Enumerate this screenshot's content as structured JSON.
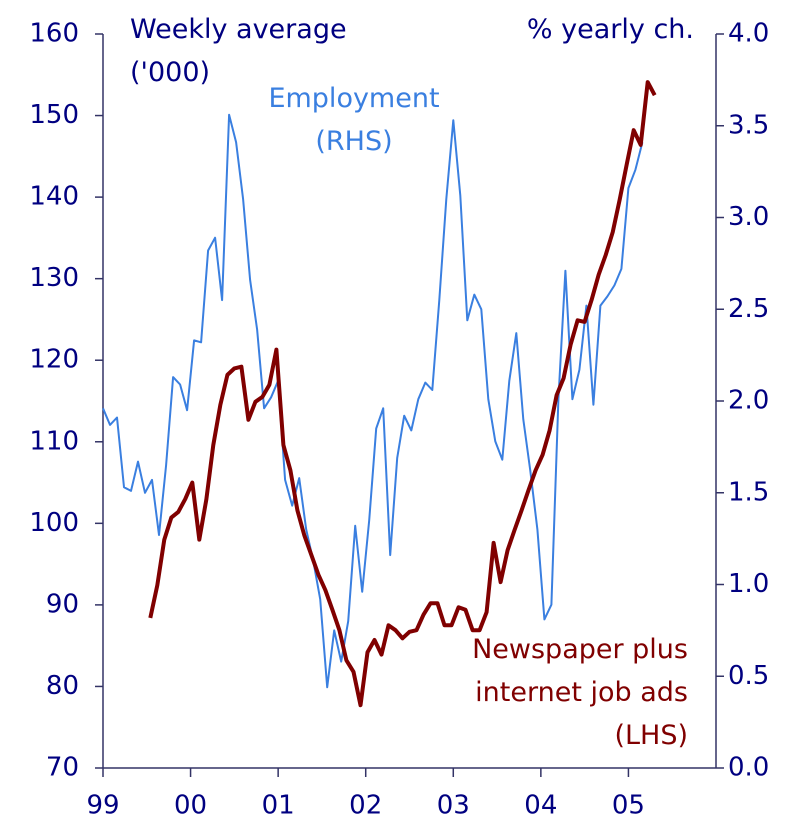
{
  "chart_data": {
    "type": "line",
    "y_label": "Weekly average\n('000)",
    "y2_label": "% yearly ch.",
    "xlim": [
      1999,
      2006
    ],
    "xticks": [
      {
        "value": 1999,
        "label": "99"
      },
      {
        "value": 2000,
        "label": "00"
      },
      {
        "value": 2001,
        "label": "01"
      },
      {
        "value": 2002,
        "label": "02"
      },
      {
        "value": 2003,
        "label": "03"
      },
      {
        "value": 2004,
        "label": "04"
      },
      {
        "value": 2005,
        "label": "05"
      }
    ],
    "ylim": [
      70,
      160
    ],
    "yticks": [
      70,
      80,
      90,
      100,
      110,
      120,
      130,
      140,
      150,
      160
    ],
    "y2lim": [
      0,
      4
    ],
    "y2ticks": [
      {
        "value": 0,
        "label": "0.0"
      },
      0.5,
      {
        "value": 1,
        "label": "1.0"
      },
      1.5,
      {
        "value": 2,
        "label": "2.0"
      },
      2.5,
      {
        "value": 3,
        "label": "3.0"
      },
      3.5,
      {
        "value": 4,
        "label": "4.0"
      }
    ],
    "series": [
      {
        "name": "Employment\n(RHS)",
        "color": "#3a7fe0",
        "axis": "y2",
        "x": [
          1999,
          1999.08,
          1999.16,
          1999.24,
          1999.32,
          1999.4,
          1999.48,
          1999.56,
          1999.64,
          1999.72,
          1999.8,
          1999.88,
          1999.96,
          2000.04,
          2000.12,
          2000.2,
          2000.28,
          2000.36,
          2000.44,
          2000.52,
          2000.6,
          2000.68,
          2000.76,
          2000.84,
          2000.92,
          2001,
          2001.08,
          2001.16,
          2001.24,
          2001.32,
          2001.4,
          2001.48,
          2001.56,
          2001.64,
          2001.72,
          2001.8,
          2001.88,
          2001.96,
          2002.04,
          2002.12,
          2002.2,
          2002.28,
          2002.36,
          2002.44,
          2002.52,
          2002.6,
          2002.68,
          2002.76,
          2002.84,
          2002.92,
          2003,
          2003.08,
          2003.16,
          2003.24,
          2003.32,
          2003.4,
          2003.48,
          2003.56,
          2003.64,
          2003.72,
          2003.8,
          2003.88,
          2003.96,
          2004.04,
          2004.12,
          2004.2,
          2004.28,
          2004.36,
          2004.44,
          2004.52,
          2004.6,
          2004.68,
          2004.76,
          2004.84,
          2004.92,
          2005,
          2005.08,
          2005.16
        ],
        "values": [
          1.96,
          1.87,
          1.91,
          1.53,
          1.51,
          1.67,
          1.5,
          1.57,
          1.27,
          1.65,
          2.13,
          2.09,
          1.95,
          2.33,
          2.32,
          2.82,
          2.89,
          2.55,
          3.56,
          3.41,
          3.1,
          2.66,
          2.39,
          1.96,
          2.02,
          2.11,
          1.57,
          1.43,
          1.58,
          1.3,
          1.13,
          0.92,
          0.44,
          0.75,
          0.58,
          0.8,
          1.32,
          0.96,
          1.35,
          1.85,
          1.96,
          1.16,
          1.69,
          1.92,
          1.84,
          2.01,
          2.1,
          2.06,
          2.55,
          3.1,
          3.53,
          3.12,
          2.44,
          2.58,
          2.5,
          2.01,
          1.78,
          1.68,
          2.11,
          2.37,
          1.9,
          1.62,
          1.3,
          0.81,
          0.89,
          2.01,
          2.71,
          2.01,
          2.17,
          2.52,
          1.98,
          2.52,
          2.57,
          2.63,
          2.72,
          3.16,
          3.26,
          3.41
        ]
      },
      {
        "name": "Newspaper plus\ninternet job ads\n(LHS)",
        "color": "#800000",
        "axis": "y",
        "x": [
          1999.54,
          1999.62,
          1999.7,
          1999.78,
          1999.86,
          1999.94,
          2000.02,
          2000.1,
          2000.18,
          2000.26,
          2000.34,
          2000.42,
          2000.5,
          2000.58,
          2000.66,
          2000.74,
          2000.82,
          2000.9,
          2000.98,
          2001.06,
          2001.14,
          2001.22,
          2001.3,
          2001.38,
          2001.46,
          2001.54,
          2001.62,
          2001.7,
          2001.78,
          2001.86,
          2001.94,
          2002.02,
          2002.1,
          2002.18,
          2002.26,
          2002.34,
          2002.42,
          2002.5,
          2002.58,
          2002.66,
          2002.74,
          2002.82,
          2002.9,
          2002.98,
          2003.06,
          2003.14,
          2003.22,
          2003.3,
          2003.38,
          2003.46,
          2003.54,
          2003.62,
          2003.7,
          2003.78,
          2003.86,
          2003.94,
          2004.02,
          2004.1,
          2004.18,
          2004.26,
          2004.34,
          2004.42,
          2004.5,
          2004.58,
          2004.66,
          2004.74,
          2004.82,
          2004.9,
          2004.98,
          2005.06,
          2005.14,
          2005.22,
          2005.3
        ],
        "values": [
          88.4,
          92.4,
          98,
          100.7,
          101.4,
          103,
          105,
          98,
          102.9,
          109.6,
          114.5,
          118.2,
          119,
          119.2,
          112.7,
          114.9,
          115.5,
          117,
          121.3,
          109.6,
          106.5,
          101.6,
          98.5,
          96.1,
          93.7,
          91.8,
          89.4,
          86.9,
          83.2,
          81.8,
          77.7,
          84.2,
          85.7,
          83.9,
          87.5,
          86.9,
          85.9,
          86.7,
          86.9,
          88.8,
          90.2,
          90.2,
          87.5,
          87.5,
          89.7,
          89.4,
          86.9,
          86.9,
          89.1,
          97.6,
          92.8,
          96.7,
          99.2,
          101.6,
          104.1,
          106.5,
          108.4,
          111.4,
          115.7,
          117.8,
          121.9,
          124.9,
          124.7,
          127.4,
          130.5,
          132.9,
          135.7,
          139.7,
          144,
          148.2,
          146.4,
          154.1,
          152.5
        ]
      }
    ]
  }
}
